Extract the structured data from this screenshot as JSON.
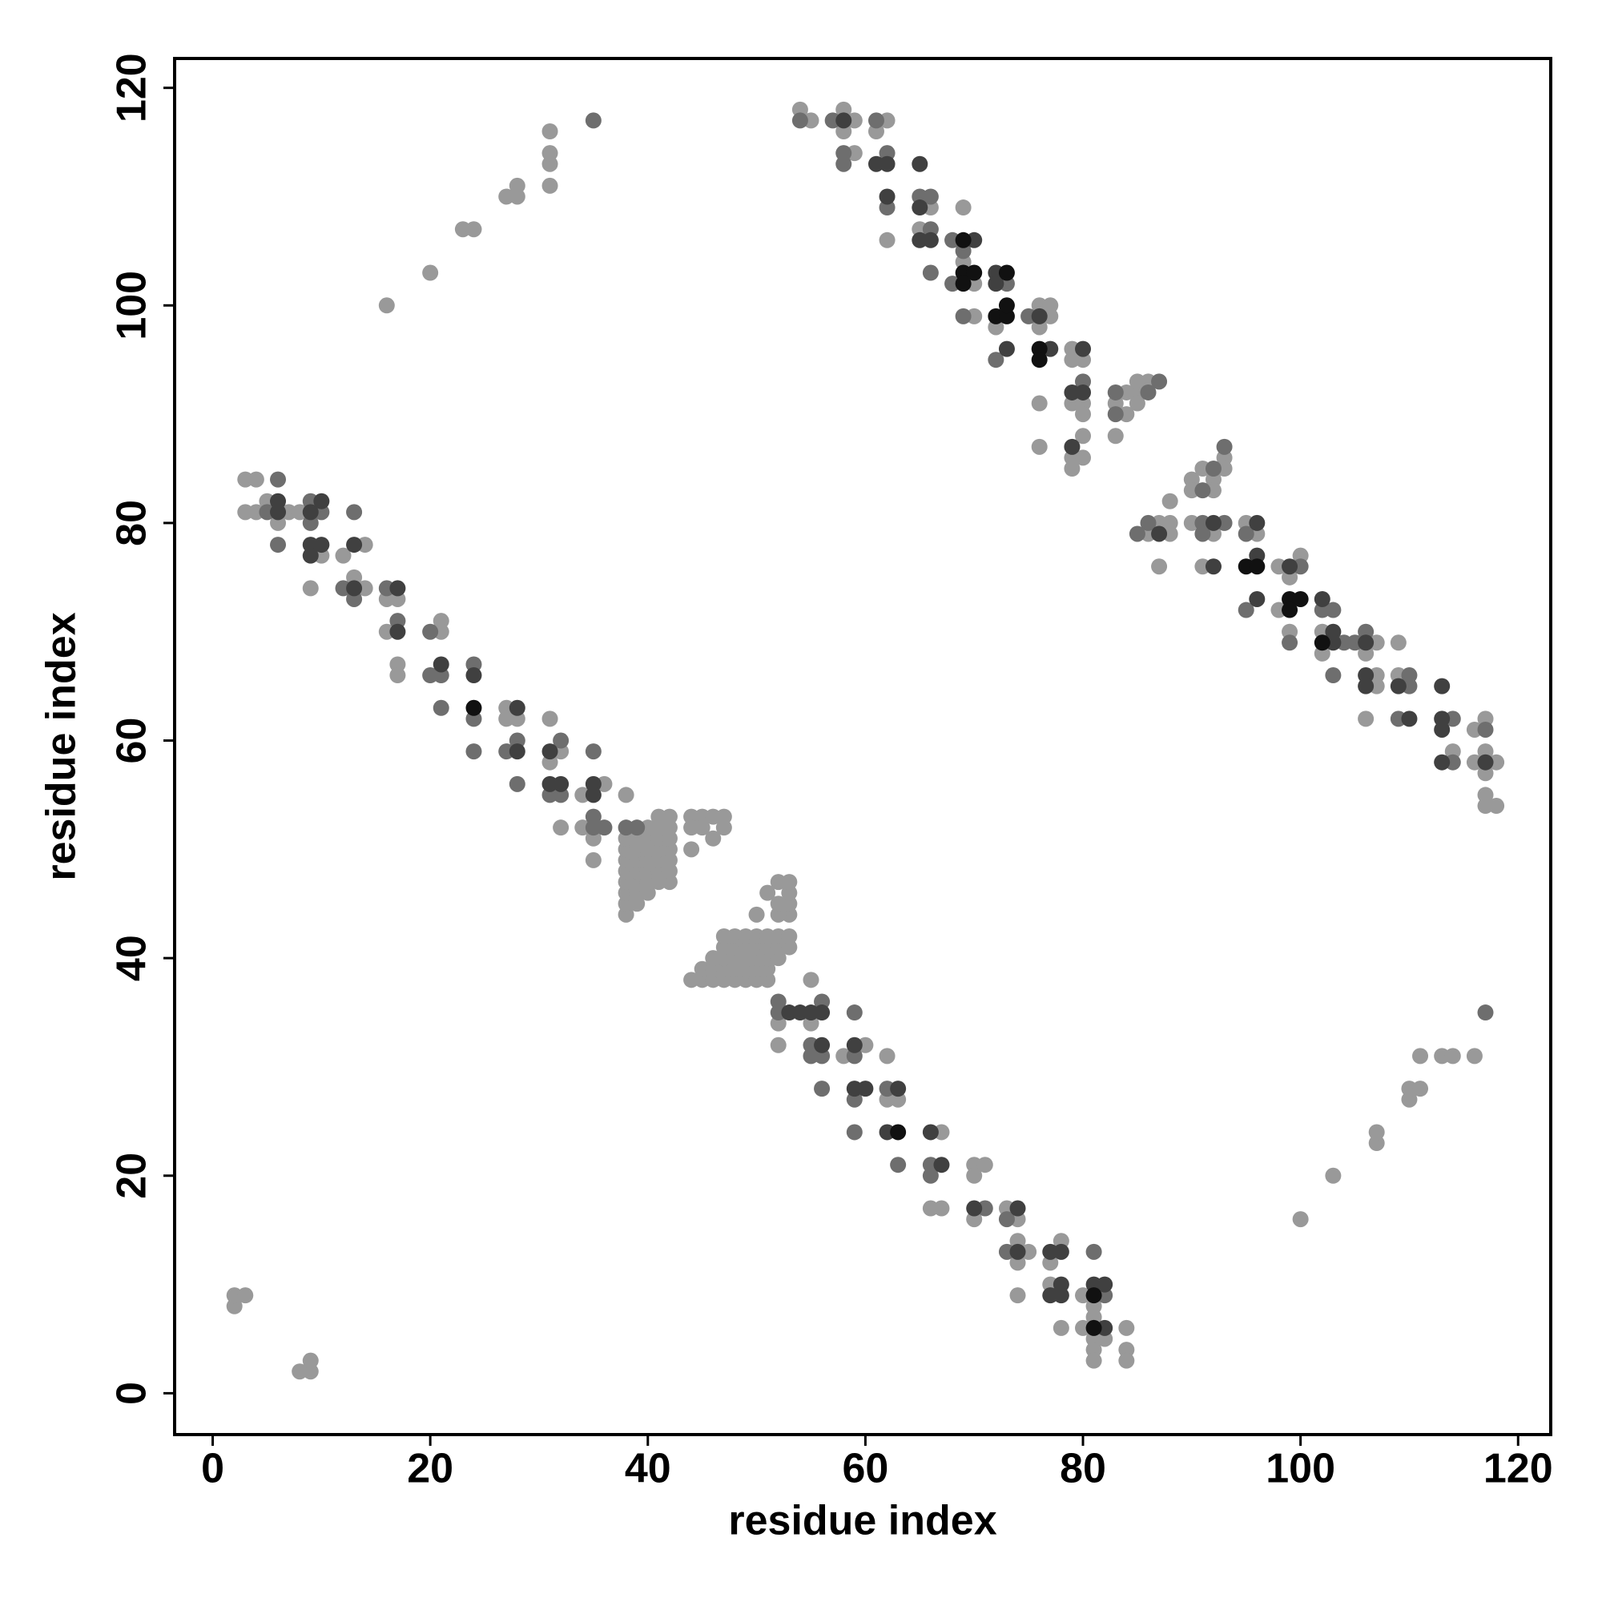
{
  "chart_data": {
    "type": "scatter",
    "xlabel": "residue index",
    "ylabel": "residue index",
    "xlim": [
      -3.5,
      123
    ],
    "ylim": [
      -3.8,
      122.7
    ],
    "xticks": [
      0,
      20,
      40,
      60,
      80,
      100,
      120
    ],
    "yticks": [
      0,
      20,
      40,
      60,
      80,
      100,
      120
    ],
    "series": [
      {
        "color": "#999999",
        "x": [
          16,
          20,
          23,
          24,
          27,
          28,
          28,
          31,
          31,
          31,
          31,
          100,
          103,
          107,
          107,
          110,
          110,
          111,
          111,
          113,
          114,
          116,
          2,
          2,
          3,
          8,
          9,
          9,
          3,
          4,
          3,
          4,
          5,
          6,
          7,
          8,
          10,
          12,
          14,
          13,
          14,
          9,
          16,
          17,
          16,
          21,
          21,
          17,
          17,
          27,
          27,
          28,
          31,
          32,
          31,
          34,
          36,
          34,
          32,
          35,
          35,
          38,
          38,
          38,
          38,
          38,
          38,
          38,
          38,
          38,
          39,
          39,
          39,
          39,
          39,
          39,
          39,
          40,
          40,
          40,
          40,
          40,
          40,
          40,
          41,
          41,
          41,
          41,
          41,
          41,
          41,
          42,
          42,
          42,
          42,
          42,
          42,
          42,
          44,
          45,
          46,
          47,
          44,
          45,
          47,
          46,
          44,
          44,
          45,
          46,
          47,
          48,
          49,
          50,
          51,
          45,
          46,
          47,
          48,
          49,
          50,
          51,
          46,
          47,
          48,
          49,
          50,
          51,
          52,
          47,
          48,
          49,
          50,
          51,
          52,
          53,
          47,
          48,
          49,
          50,
          51,
          52,
          53,
          53,
          53,
          53,
          53,
          52,
          52,
          52,
          51,
          50,
          52,
          55,
          55,
          52,
          58,
          60,
          62,
          62,
          63,
          67,
          70,
          71,
          70,
          66,
          67,
          70,
          73,
          74,
          75,
          74,
          74,
          74,
          78,
          77,
          77,
          80,
          81,
          81,
          78,
          80,
          81,
          82,
          81,
          81,
          84,
          84,
          84,
          54,
          55,
          58,
          58,
          59,
          62,
          61,
          59,
          66,
          62,
          65,
          69,
          69,
          70,
          70,
          72,
          76,
          77,
          77,
          76,
          79,
          79,
          80,
          76,
          76,
          79,
          80,
          80,
          80,
          79,
          80,
          79,
          83,
          83,
          84,
          84,
          85,
          85,
          85,
          86,
          86,
          87,
          88,
          88,
          87,
          88,
          90,
          90,
          91,
          93,
          93,
          92,
          92,
          90,
          92,
          91,
          95,
          96,
          100,
          99,
          98,
          98,
          99,
          102,
          102,
          107,
          106,
          107,
          107,
          109,
          109,
          106,
          114,
          116,
          117,
          116,
          117,
          118,
          117,
          117,
          117,
          118
        ],
        "values": [
          100,
          103,
          107,
          107,
          110,
          110,
          111,
          111,
          113,
          114,
          116,
          16,
          20,
          23,
          24,
          27,
          28,
          28,
          31,
          31,
          31,
          31,
          8,
          9,
          9,
          2,
          2,
          3,
          84,
          84,
          81,
          81,
          82,
          80,
          81,
          81,
          77,
          77,
          78,
          75,
          74,
          74,
          73,
          73,
          70,
          71,
          70,
          67,
          66,
          63,
          62,
          62,
          62,
          59,
          58,
          55,
          56,
          52,
          52,
          51,
          49,
          55,
          44,
          45,
          46,
          47,
          48,
          49,
          50,
          51,
          45,
          46,
          47,
          48,
          49,
          50,
          51,
          46,
          47,
          48,
          49,
          50,
          51,
          52,
          47,
          48,
          49,
          50,
          51,
          52,
          53,
          47,
          48,
          49,
          50,
          51,
          52,
          53,
          53,
          53,
          53,
          53,
          52,
          52,
          52,
          51,
          50,
          38,
          38,
          38,
          38,
          38,
          38,
          38,
          38,
          39,
          39,
          39,
          39,
          39,
          39,
          39,
          40,
          40,
          40,
          40,
          40,
          40,
          40,
          41,
          41,
          41,
          41,
          41,
          41,
          41,
          42,
          42,
          42,
          42,
          42,
          42,
          42,
          44,
          45,
          46,
          47,
          44,
          45,
          47,
          46,
          44,
          34,
          34,
          38,
          32,
          31,
          32,
          31,
          27,
          27,
          24,
          21,
          21,
          20,
          17,
          17,
          16,
          17,
          16,
          13,
          14,
          12,
          9,
          14,
          12,
          10,
          9,
          8,
          7,
          6,
          6,
          5,
          5,
          4,
          3,
          6,
          4,
          3,
          118,
          117,
          118,
          116,
          117,
          117,
          116,
          114,
          109,
          106,
          107,
          109,
          104,
          102,
          99,
          98,
          100,
          100,
          99,
          98,
          96,
          95,
          95,
          91,
          87,
          91,
          91,
          90,
          88,
          86,
          86,
          85,
          88,
          91,
          90,
          92,
          92,
          91,
          93,
          93,
          79,
          80,
          80,
          79,
          76,
          82,
          84,
          83,
          85,
          86,
          85,
          84,
          83,
          80,
          79,
          76,
          80,
          79,
          77,
          75,
          76,
          72,
          70,
          70,
          68,
          69,
          68,
          66,
          65,
          69,
          66,
          62,
          59,
          61,
          62,
          58,
          59,
          58,
          57,
          55,
          54,
          54
        ]
      },
      {
        "color": "#6e6e6e",
        "x": [
          35,
          117,
          6,
          5,
          9,
          10,
          9,
          6,
          13,
          12,
          13,
          16,
          17,
          20,
          20,
          21,
          24,
          21,
          24,
          24,
          27,
          28,
          28,
          32,
          31,
          32,
          35,
          35,
          35,
          36,
          38,
          39,
          52,
          52,
          56,
          55,
          55,
          56,
          59,
          59,
          56,
          59,
          62,
          59,
          63,
          66,
          66,
          71,
          73,
          73,
          81,
          82,
          54,
          57,
          61,
          58,
          58,
          62,
          62,
          65,
          66,
          66,
          66,
          68,
          69,
          68,
          69,
          73,
          72,
          75,
          80,
          83,
          83,
          86,
          87,
          85,
          86,
          91,
          92,
          93,
          91,
          91,
          93,
          95,
          95,
          100,
          99,
          102,
          103,
          104,
          105,
          106,
          103,
          110,
          110,
          109,
          114,
          114,
          117
        ],
        "values": [
          117,
          35,
          84,
          81,
          82,
          81,
          80,
          78,
          81,
          74,
          73,
          74,
          71,
          70,
          66,
          66,
          67,
          63,
          62,
          59,
          59,
          60,
          56,
          60,
          55,
          55,
          59,
          53,
          52,
          52,
          52,
          52,
          36,
          35,
          36,
          32,
          31,
          31,
          31,
          35,
          28,
          27,
          28,
          24,
          21,
          21,
          20,
          17,
          16,
          13,
          13,
          9,
          117,
          117,
          117,
          114,
          113,
          114,
          109,
          110,
          110,
          107,
          103,
          106,
          105,
          102,
          99,
          102,
          95,
          99,
          93,
          92,
          90,
          92,
          93,
          79,
          80,
          83,
          85,
          87,
          80,
          79,
          80,
          79,
          72,
          76,
          69,
          72,
          72,
          69,
          69,
          70,
          66,
          66,
          65,
          62,
          62,
          58,
          61
        ]
      },
      {
        "color": "#404040",
        "x": [
          6,
          6,
          10,
          9,
          9,
          10,
          9,
          13,
          13,
          17,
          17,
          21,
          24,
          28,
          28,
          31,
          31,
          32,
          35,
          35,
          53,
          54,
          55,
          56,
          56,
          59,
          59,
          60,
          63,
          62,
          66,
          67,
          70,
          74,
          74,
          77,
          78,
          78,
          77,
          78,
          81,
          82,
          82,
          58,
          61,
          62,
          65,
          62,
          65,
          65,
          66,
          70,
          72,
          72,
          73,
          76,
          77,
          80,
          79,
          80,
          79,
          87,
          92,
          92,
          96,
          96,
          96,
          99,
          102,
          103,
          103,
          106,
          106,
          106,
          109,
          110,
          113,
          113,
          113,
          113,
          117
        ],
        "values": [
          82,
          81,
          82,
          81,
          78,
          78,
          77,
          78,
          74,
          74,
          70,
          67,
          66,
          63,
          59,
          59,
          56,
          56,
          56,
          55,
          35,
          35,
          35,
          35,
          32,
          32,
          28,
          28,
          28,
          24,
          24,
          21,
          17,
          17,
          13,
          13,
          13,
          10,
          9,
          9,
          10,
          10,
          6,
          117,
          113,
          113,
          113,
          110,
          109,
          106,
          106,
          106,
          103,
          102,
          96,
          99,
          96,
          96,
          92,
          92,
          87,
          79,
          80,
          76,
          80,
          77,
          73,
          76,
          73,
          70,
          69,
          69,
          66,
          65,
          65,
          62,
          65,
          62,
          61,
          58,
          58
        ]
      },
      {
        "color": "#111111",
        "x": [
          24,
          63,
          81,
          81,
          69,
          69,
          70,
          69,
          73,
          72,
          73,
          73,
          76,
          76,
          95,
          96,
          99,
          100,
          99,
          102
        ],
        "values": [
          63,
          24,
          9,
          6,
          106,
          103,
          103,
          102,
          103,
          99,
          99,
          100,
          96,
          95,
          76,
          76,
          73,
          73,
          72,
          69
        ]
      }
    ]
  }
}
